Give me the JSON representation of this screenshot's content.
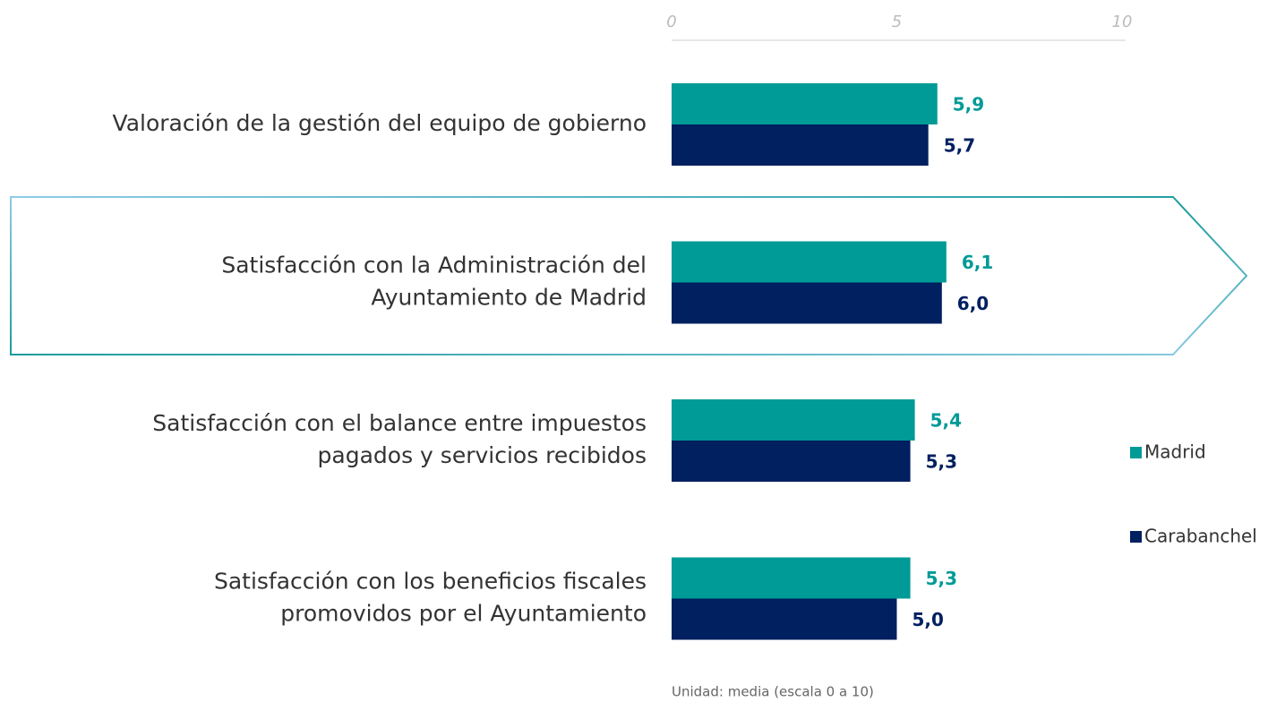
{
  "chart_data": {
    "type": "hbar",
    "categories": [
      [
        "Valoración de la gestión del equipo de gobierno"
      ],
      [
        "Satisfacción con la Administración del",
        "Ayuntamiento de Madrid"
      ],
      [
        "Satisfacción con el balance entre impuestos",
        "pagados y servicios recibidos"
      ],
      [
        "Satisfacción con los beneficios fiscales",
        "promovidos por el Ayuntamiento"
      ]
    ],
    "series": [
      {
        "name": "Madrid",
        "color": "#009a97",
        "values": [
          5.9,
          6.1,
          5.4,
          5.3
        ],
        "value_labels": [
          "5,9",
          "6,1",
          "5,4",
          "5,3"
        ]
      },
      {
        "name": "Carabanchel",
        "color": "#002060",
        "values": [
          5.7,
          6.0,
          5.3,
          5.0
        ],
        "value_labels": [
          "5,7",
          "6,0",
          "5,3",
          "5,0"
        ]
      }
    ],
    "xlim": [
      0,
      10
    ],
    "xticks": [
      0,
      5,
      10
    ],
    "legend": "right",
    "note": "Unidad: media (escala 0 a 10)"
  }
}
